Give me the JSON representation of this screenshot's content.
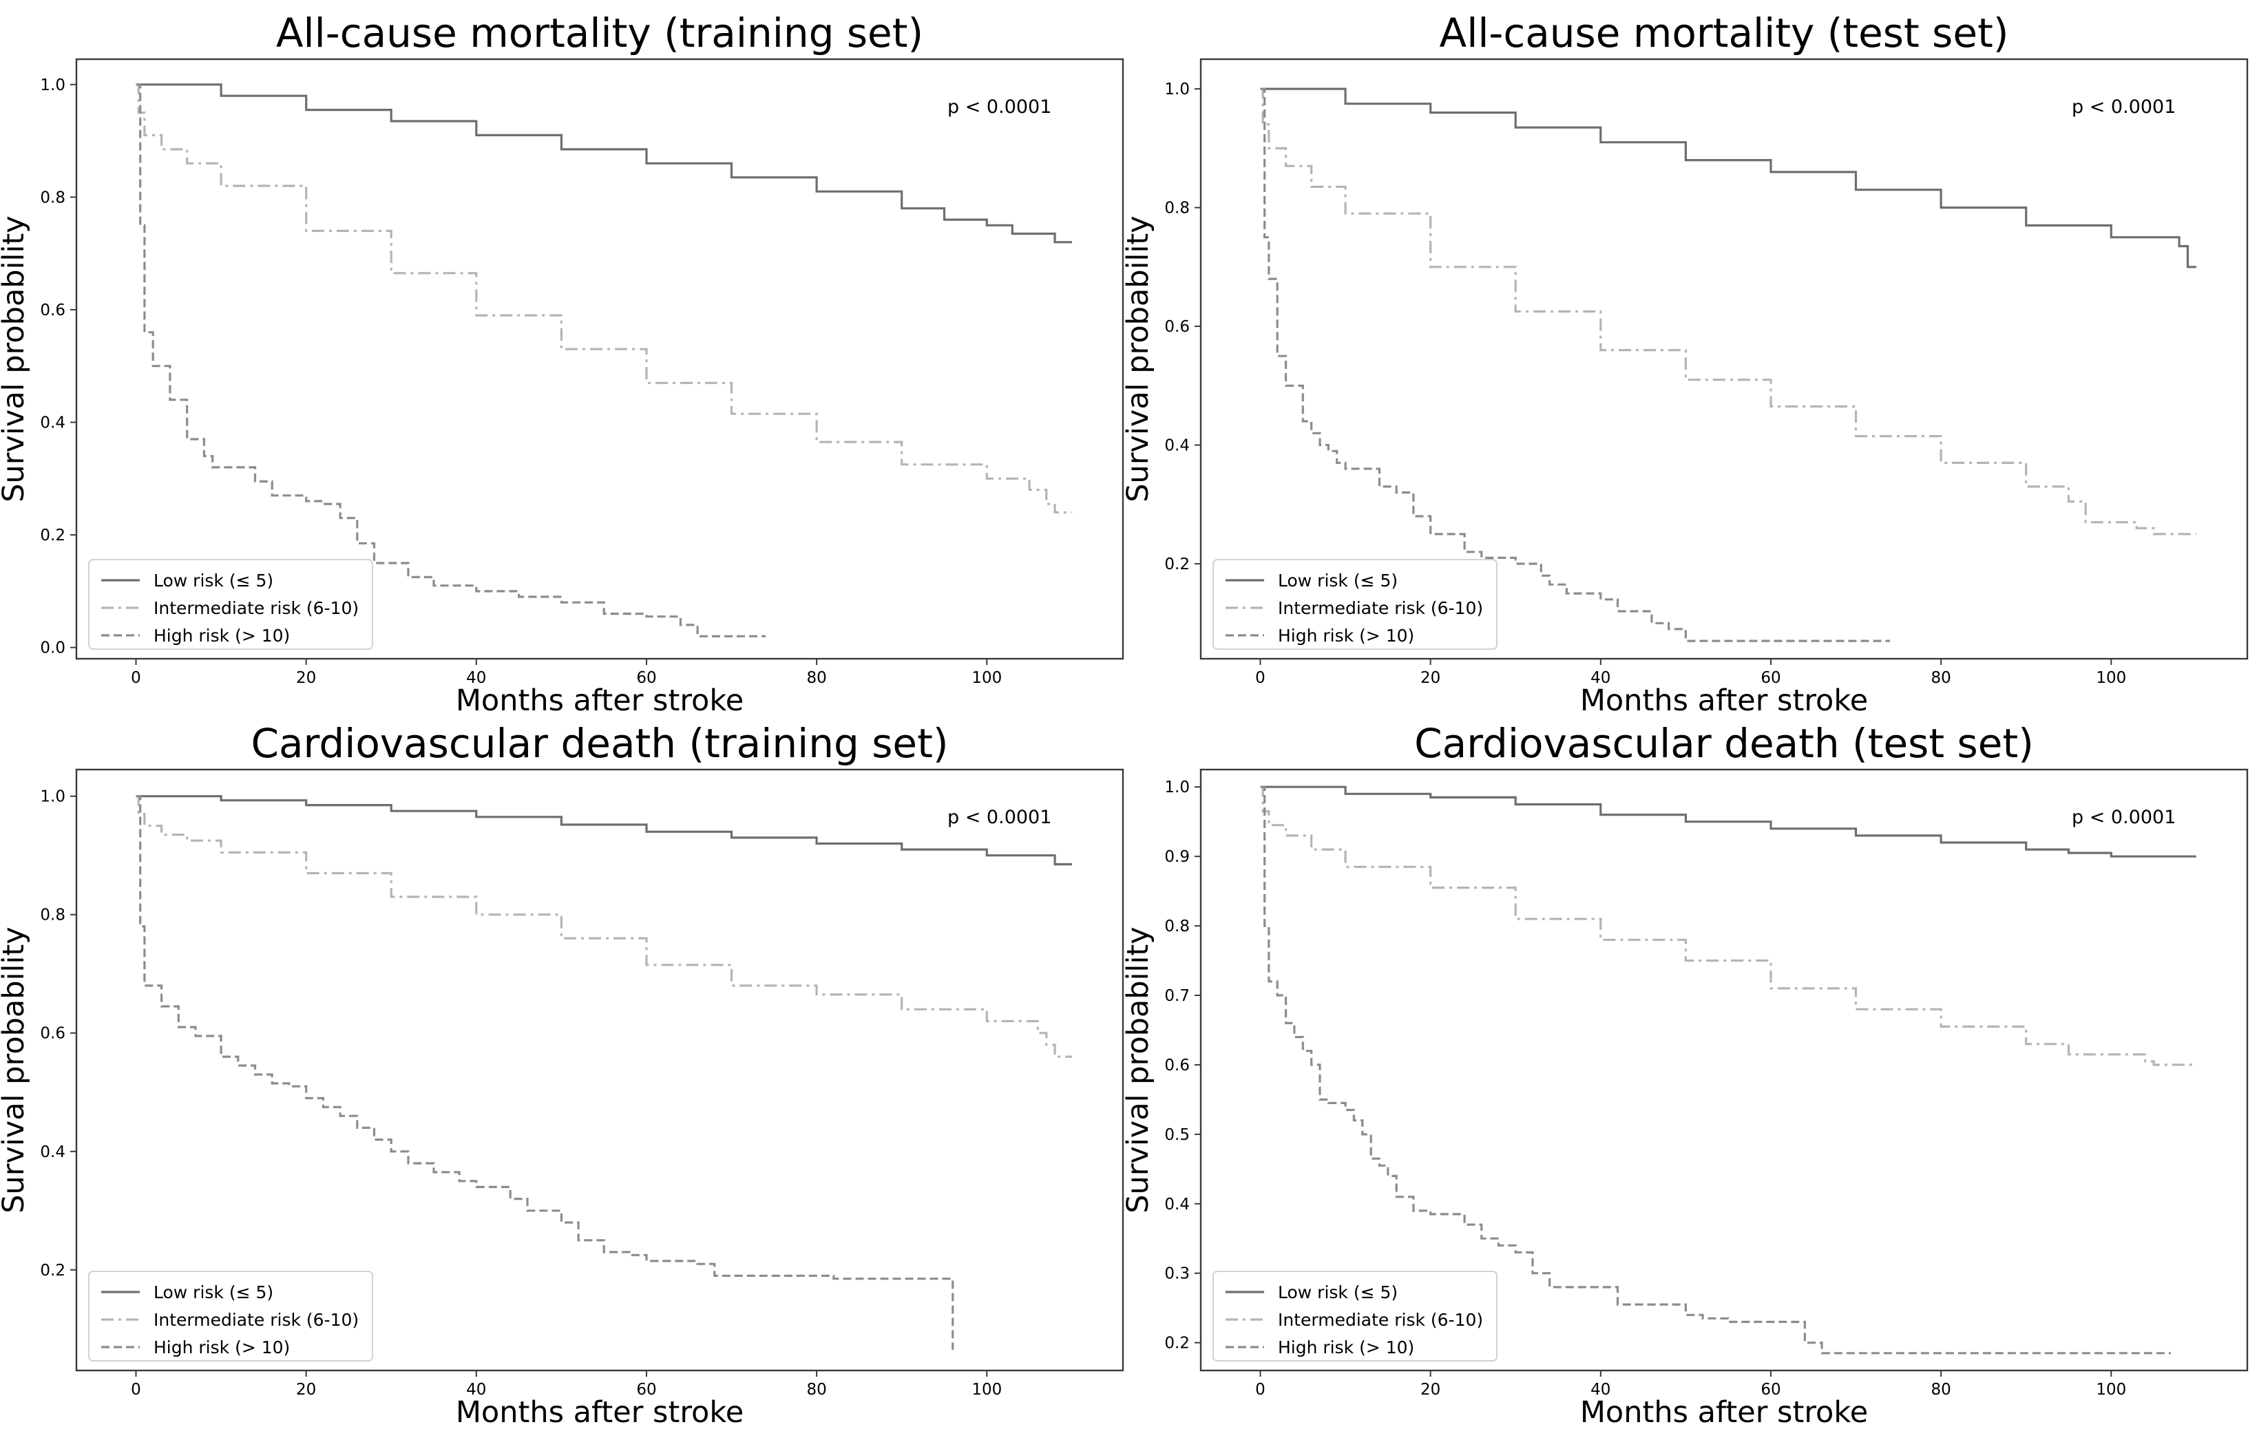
{
  "figure": {
    "background": "#ffffff"
  },
  "series_styles": [
    {
      "name": "Low risk (≤ 5)",
      "color": "#6e6e6e",
      "dash": ""
    },
    {
      "name": "Intermediate risk (6-10)",
      "color": "#b4b4b4",
      "dash": "18 7 4 7"
    },
    {
      "name": "High risk (> 10)",
      "color": "#8c8c8c",
      "dash": "12 6"
    }
  ],
  "chart_data": [
    {
      "type": "line",
      "title": "All-cause mortality (training set)",
      "xlabel": "Months after stroke",
      "ylabel": "Survival probability",
      "xlim": [
        -7,
        116
      ],
      "ylim": [
        -0.02,
        1.045
      ],
      "xticks": [
        0,
        20,
        40,
        60,
        80,
        100
      ],
      "xtick_labels": [
        "0",
        "20",
        "40",
        "60",
        "80",
        "100"
      ],
      "yticks": [
        0.0,
        0.2,
        0.4,
        0.6,
        0.8,
        1.0
      ],
      "ytick_labels": [
        "0.0",
        "0.2",
        "0.4",
        "0.6",
        "0.8",
        "1.0"
      ],
      "annotation": "p < 0.0001",
      "legend": "lower-left",
      "series": [
        {
          "name": "Low risk (≤ 5)",
          "x": [
            0,
            10,
            20,
            30,
            40,
            50,
            60,
            70,
            80,
            90,
            95,
            100,
            103,
            107,
            108,
            110
          ],
          "y": [
            1.0,
            0.98,
            0.955,
            0.935,
            0.91,
            0.885,
            0.86,
            0.835,
            0.81,
            0.78,
            0.76,
            0.75,
            0.735,
            0.735,
            0.72,
            0.72
          ]
        },
        {
          "name": "Intermediate risk (6-10)",
          "x": [
            0,
            0.3,
            1,
            3,
            6,
            10,
            20,
            30,
            40,
            50,
            60,
            70,
            80,
            90,
            100,
            105,
            107,
            108,
            110
          ],
          "y": [
            1.0,
            0.95,
            0.91,
            0.885,
            0.86,
            0.82,
            0.74,
            0.665,
            0.59,
            0.53,
            0.47,
            0.415,
            0.365,
            0.325,
            0.3,
            0.28,
            0.255,
            0.24,
            0.24
          ]
        },
        {
          "name": "High risk (> 10)",
          "x": [
            0,
            0.5,
            1,
            2,
            4,
            6,
            8,
            9,
            12,
            14,
            16,
            20,
            22,
            24,
            26,
            28,
            32,
            35,
            40,
            45,
            50,
            55,
            60,
            64,
            66,
            74
          ],
          "y": [
            1.0,
            0.75,
            0.56,
            0.5,
            0.44,
            0.37,
            0.34,
            0.32,
            0.32,
            0.295,
            0.27,
            0.26,
            0.255,
            0.23,
            0.185,
            0.15,
            0.125,
            0.11,
            0.1,
            0.09,
            0.08,
            0.06,
            0.055,
            0.04,
            0.02,
            0.02
          ]
        }
      ]
    },
    {
      "type": "line",
      "title": "All-cause mortality (test set)",
      "xlabel": "Months after stroke",
      "ylabel": "Survival probability",
      "xlim": [
        -7,
        116
      ],
      "ylim": [
        0.04,
        1.05
      ],
      "xticks": [
        0,
        20,
        40,
        60,
        80,
        100
      ],
      "xtick_labels": [
        "0",
        "20",
        "40",
        "60",
        "80",
        "100"
      ],
      "yticks": [
        0.2,
        0.4,
        0.6,
        0.8,
        1.0
      ],
      "ytick_labels": [
        "0.2",
        "0.4",
        "0.6",
        "0.8",
        "1.0"
      ],
      "annotation": "p < 0.0001",
      "legend": "lower-left",
      "series": [
        {
          "name": "Low risk (≤ 5)",
          "x": [
            0,
            10,
            20,
            30,
            40,
            50,
            60,
            70,
            80,
            90,
            100,
            108,
            109,
            110
          ],
          "y": [
            1.0,
            0.975,
            0.96,
            0.935,
            0.91,
            0.88,
            0.86,
            0.83,
            0.8,
            0.77,
            0.75,
            0.735,
            0.7,
            0.7
          ]
        },
        {
          "name": "Intermediate risk (6-10)",
          "x": [
            0,
            0.3,
            1,
            3,
            6,
            10,
            20,
            30,
            40,
            50,
            60,
            70,
            80,
            90,
            95,
            97,
            100,
            103,
            105,
            110
          ],
          "y": [
            1.0,
            0.94,
            0.9,
            0.87,
            0.835,
            0.79,
            0.7,
            0.625,
            0.56,
            0.51,
            0.465,
            0.415,
            0.37,
            0.33,
            0.305,
            0.27,
            0.27,
            0.26,
            0.25,
            0.25
          ]
        },
        {
          "name": "High risk (> 10)",
          "x": [
            0,
            0.5,
            1,
            2,
            3,
            5,
            6,
            7,
            8,
            9,
            10,
            12,
            14,
            16,
            18,
            20,
            24,
            26,
            30,
            33,
            34,
            36,
            40,
            42,
            44,
            46,
            48,
            50,
            74
          ],
          "y": [
            1.0,
            0.75,
            0.68,
            0.55,
            0.5,
            0.44,
            0.42,
            0.4,
            0.39,
            0.37,
            0.36,
            0.36,
            0.33,
            0.32,
            0.28,
            0.25,
            0.22,
            0.21,
            0.2,
            0.18,
            0.165,
            0.15,
            0.14,
            0.12,
            0.12,
            0.1,
            0.09,
            0.07,
            0.07
          ]
        }
      ]
    },
    {
      "type": "line",
      "title": "Cardiovascular death (training set)",
      "xlabel": "Months after stroke",
      "ylabel": "Survival probability",
      "xlim": [
        -7,
        116
      ],
      "ylim": [
        0.03,
        1.045
      ],
      "xticks": [
        0,
        20,
        40,
        60,
        80,
        100
      ],
      "xtick_labels": [
        "0",
        "20",
        "40",
        "60",
        "80",
        "100"
      ],
      "yticks": [
        0.2,
        0.4,
        0.6,
        0.8,
        1.0
      ],
      "ytick_labels": [
        "0.2",
        "0.4",
        "0.6",
        "0.8",
        "1.0"
      ],
      "annotation": "p < 0.0001",
      "legend": "lower-left",
      "series": [
        {
          "name": "Low risk (≤ 5)",
          "x": [
            0,
            10,
            20,
            30,
            40,
            50,
            60,
            70,
            80,
            90,
            100,
            107,
            108,
            110
          ],
          "y": [
            1.0,
            0.993,
            0.985,
            0.975,
            0.965,
            0.952,
            0.94,
            0.93,
            0.92,
            0.91,
            0.9,
            0.9,
            0.885,
            0.885
          ]
        },
        {
          "name": "Intermediate risk (6-10)",
          "x": [
            0,
            0.3,
            1,
            3,
            6,
            10,
            20,
            30,
            40,
            50,
            60,
            70,
            80,
            90,
            100,
            106,
            107,
            108,
            110
          ],
          "y": [
            1.0,
            0.97,
            0.95,
            0.935,
            0.925,
            0.905,
            0.87,
            0.83,
            0.8,
            0.76,
            0.715,
            0.68,
            0.665,
            0.64,
            0.62,
            0.6,
            0.58,
            0.56,
            0.56
          ]
        },
        {
          "name": "High risk (> 10)",
          "x": [
            0,
            0.5,
            1,
            3,
            5,
            7,
            10,
            12,
            14,
            16,
            18,
            20,
            22,
            24,
            26,
            28,
            30,
            32,
            35,
            38,
            40,
            44,
            46,
            50,
            52,
            55,
            58,
            60,
            66,
            68,
            70,
            75,
            80,
            82,
            96
          ],
          "y": [
            1.0,
            0.78,
            0.68,
            0.645,
            0.61,
            0.595,
            0.56,
            0.545,
            0.53,
            0.515,
            0.51,
            0.49,
            0.475,
            0.46,
            0.44,
            0.42,
            0.4,
            0.38,
            0.365,
            0.35,
            0.34,
            0.32,
            0.3,
            0.28,
            0.25,
            0.23,
            0.225,
            0.215,
            0.21,
            0.19,
            0.19,
            0.19,
            0.19,
            0.185,
            0.065
          ]
        }
      ]
    },
    {
      "type": "line",
      "title": "Cardiovascular death (test set)",
      "xlabel": "Months after stroke",
      "ylabel": "Survival probability",
      "xlim": [
        -7,
        116
      ],
      "ylim": [
        0.16,
        1.025
      ],
      "xticks": [
        0,
        20,
        40,
        60,
        80,
        100
      ],
      "xtick_labels": [
        "0",
        "20",
        "40",
        "60",
        "80",
        "100"
      ],
      "yticks": [
        0.2,
        0.3,
        0.4,
        0.5,
        0.6,
        0.7,
        0.8,
        0.9,
        1.0
      ],
      "ytick_labels": [
        "0.2",
        "0.3",
        "0.4",
        "0.5",
        "0.6",
        "0.7",
        "0.8",
        "0.9",
        "1.0"
      ],
      "annotation": "p < 0.0001",
      "legend": "lower-left",
      "series": [
        {
          "name": "Low risk (≤ 5)",
          "x": [
            0,
            10,
            20,
            30,
            40,
            50,
            60,
            70,
            80,
            90,
            95,
            100,
            110
          ],
          "y": [
            1.0,
            0.99,
            0.985,
            0.975,
            0.96,
            0.95,
            0.94,
            0.93,
            0.92,
            0.91,
            0.905,
            0.9,
            0.9
          ]
        },
        {
          "name": "Intermediate risk (6-10)",
          "x": [
            0,
            0.3,
            1,
            3,
            6,
            10,
            20,
            30,
            40,
            50,
            60,
            70,
            80,
            90,
            95,
            100,
            104,
            105,
            110
          ],
          "y": [
            1.0,
            0.965,
            0.945,
            0.93,
            0.91,
            0.885,
            0.855,
            0.81,
            0.78,
            0.75,
            0.71,
            0.68,
            0.655,
            0.63,
            0.615,
            0.615,
            0.605,
            0.6,
            0.6
          ]
        },
        {
          "name": "High risk (> 10)",
          "x": [
            0,
            0.5,
            1,
            2,
            3,
            4,
            5,
            6,
            7,
            8,
            10,
            11,
            12,
            13,
            14,
            15,
            16,
            18,
            20,
            24,
            26,
            28,
            30,
            32,
            34,
            36,
            40,
            42,
            46,
            50,
            52,
            55,
            58,
            62,
            64,
            66,
            68,
            70,
            75,
            80,
            90,
            100,
            107
          ],
          "y": [
            1.0,
            0.8,
            0.72,
            0.7,
            0.66,
            0.64,
            0.62,
            0.6,
            0.55,
            0.545,
            0.535,
            0.52,
            0.5,
            0.465,
            0.455,
            0.44,
            0.41,
            0.39,
            0.385,
            0.37,
            0.35,
            0.34,
            0.33,
            0.3,
            0.28,
            0.28,
            0.28,
            0.255,
            0.255,
            0.24,
            0.235,
            0.23,
            0.23,
            0.23,
            0.2,
            0.185,
            0.185,
            0.185,
            0.185,
            0.185,
            0.185,
            0.185,
            0.185
          ]
        }
      ]
    }
  ]
}
